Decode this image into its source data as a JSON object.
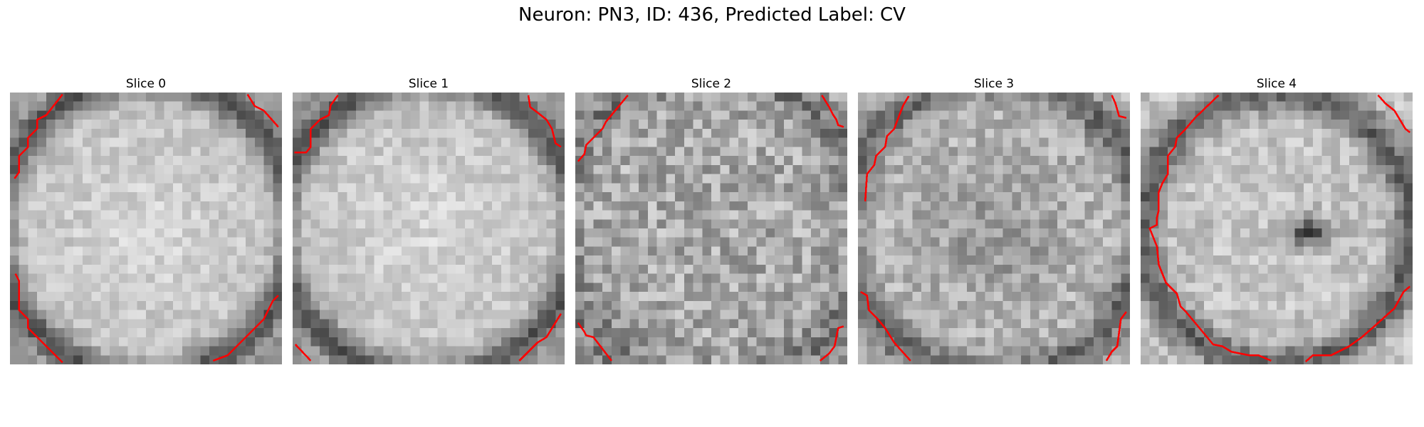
{
  "figure": {
    "title": "Neuron: PN3, ID: 436, Predicted Label: CV",
    "contour_color": "#ff0000",
    "grid_size": 30,
    "colormap": "gray",
    "panels": [
      {
        "title": "Slice 0",
        "shading": "bright-center-dark-ring",
        "contour_corners": [
          "top-left",
          "top-right",
          "bottom-left",
          "bottom-right"
        ]
      },
      {
        "title": "Slice 1",
        "shading": "bright-center-dark-ring",
        "contour_corners": [
          "top-left",
          "top-right",
          "bottom-left",
          "bottom-right"
        ]
      },
      {
        "title": "Slice 2",
        "shading": "noisy-mid-gray",
        "contour_corners": [
          "top-left",
          "top-right",
          "bottom-left",
          "bottom-right"
        ]
      },
      {
        "title": "Slice 3",
        "shading": "noisy-darker-center",
        "contour_corners": [
          "top-left",
          "top-right",
          "bottom-left",
          "bottom-right"
        ]
      },
      {
        "title": "Slice 4",
        "shading": "ring-with-dark-blob",
        "contour_corners": [
          "top-left",
          "top-right",
          "bottom-left",
          "bottom-right"
        ]
      }
    ]
  }
}
